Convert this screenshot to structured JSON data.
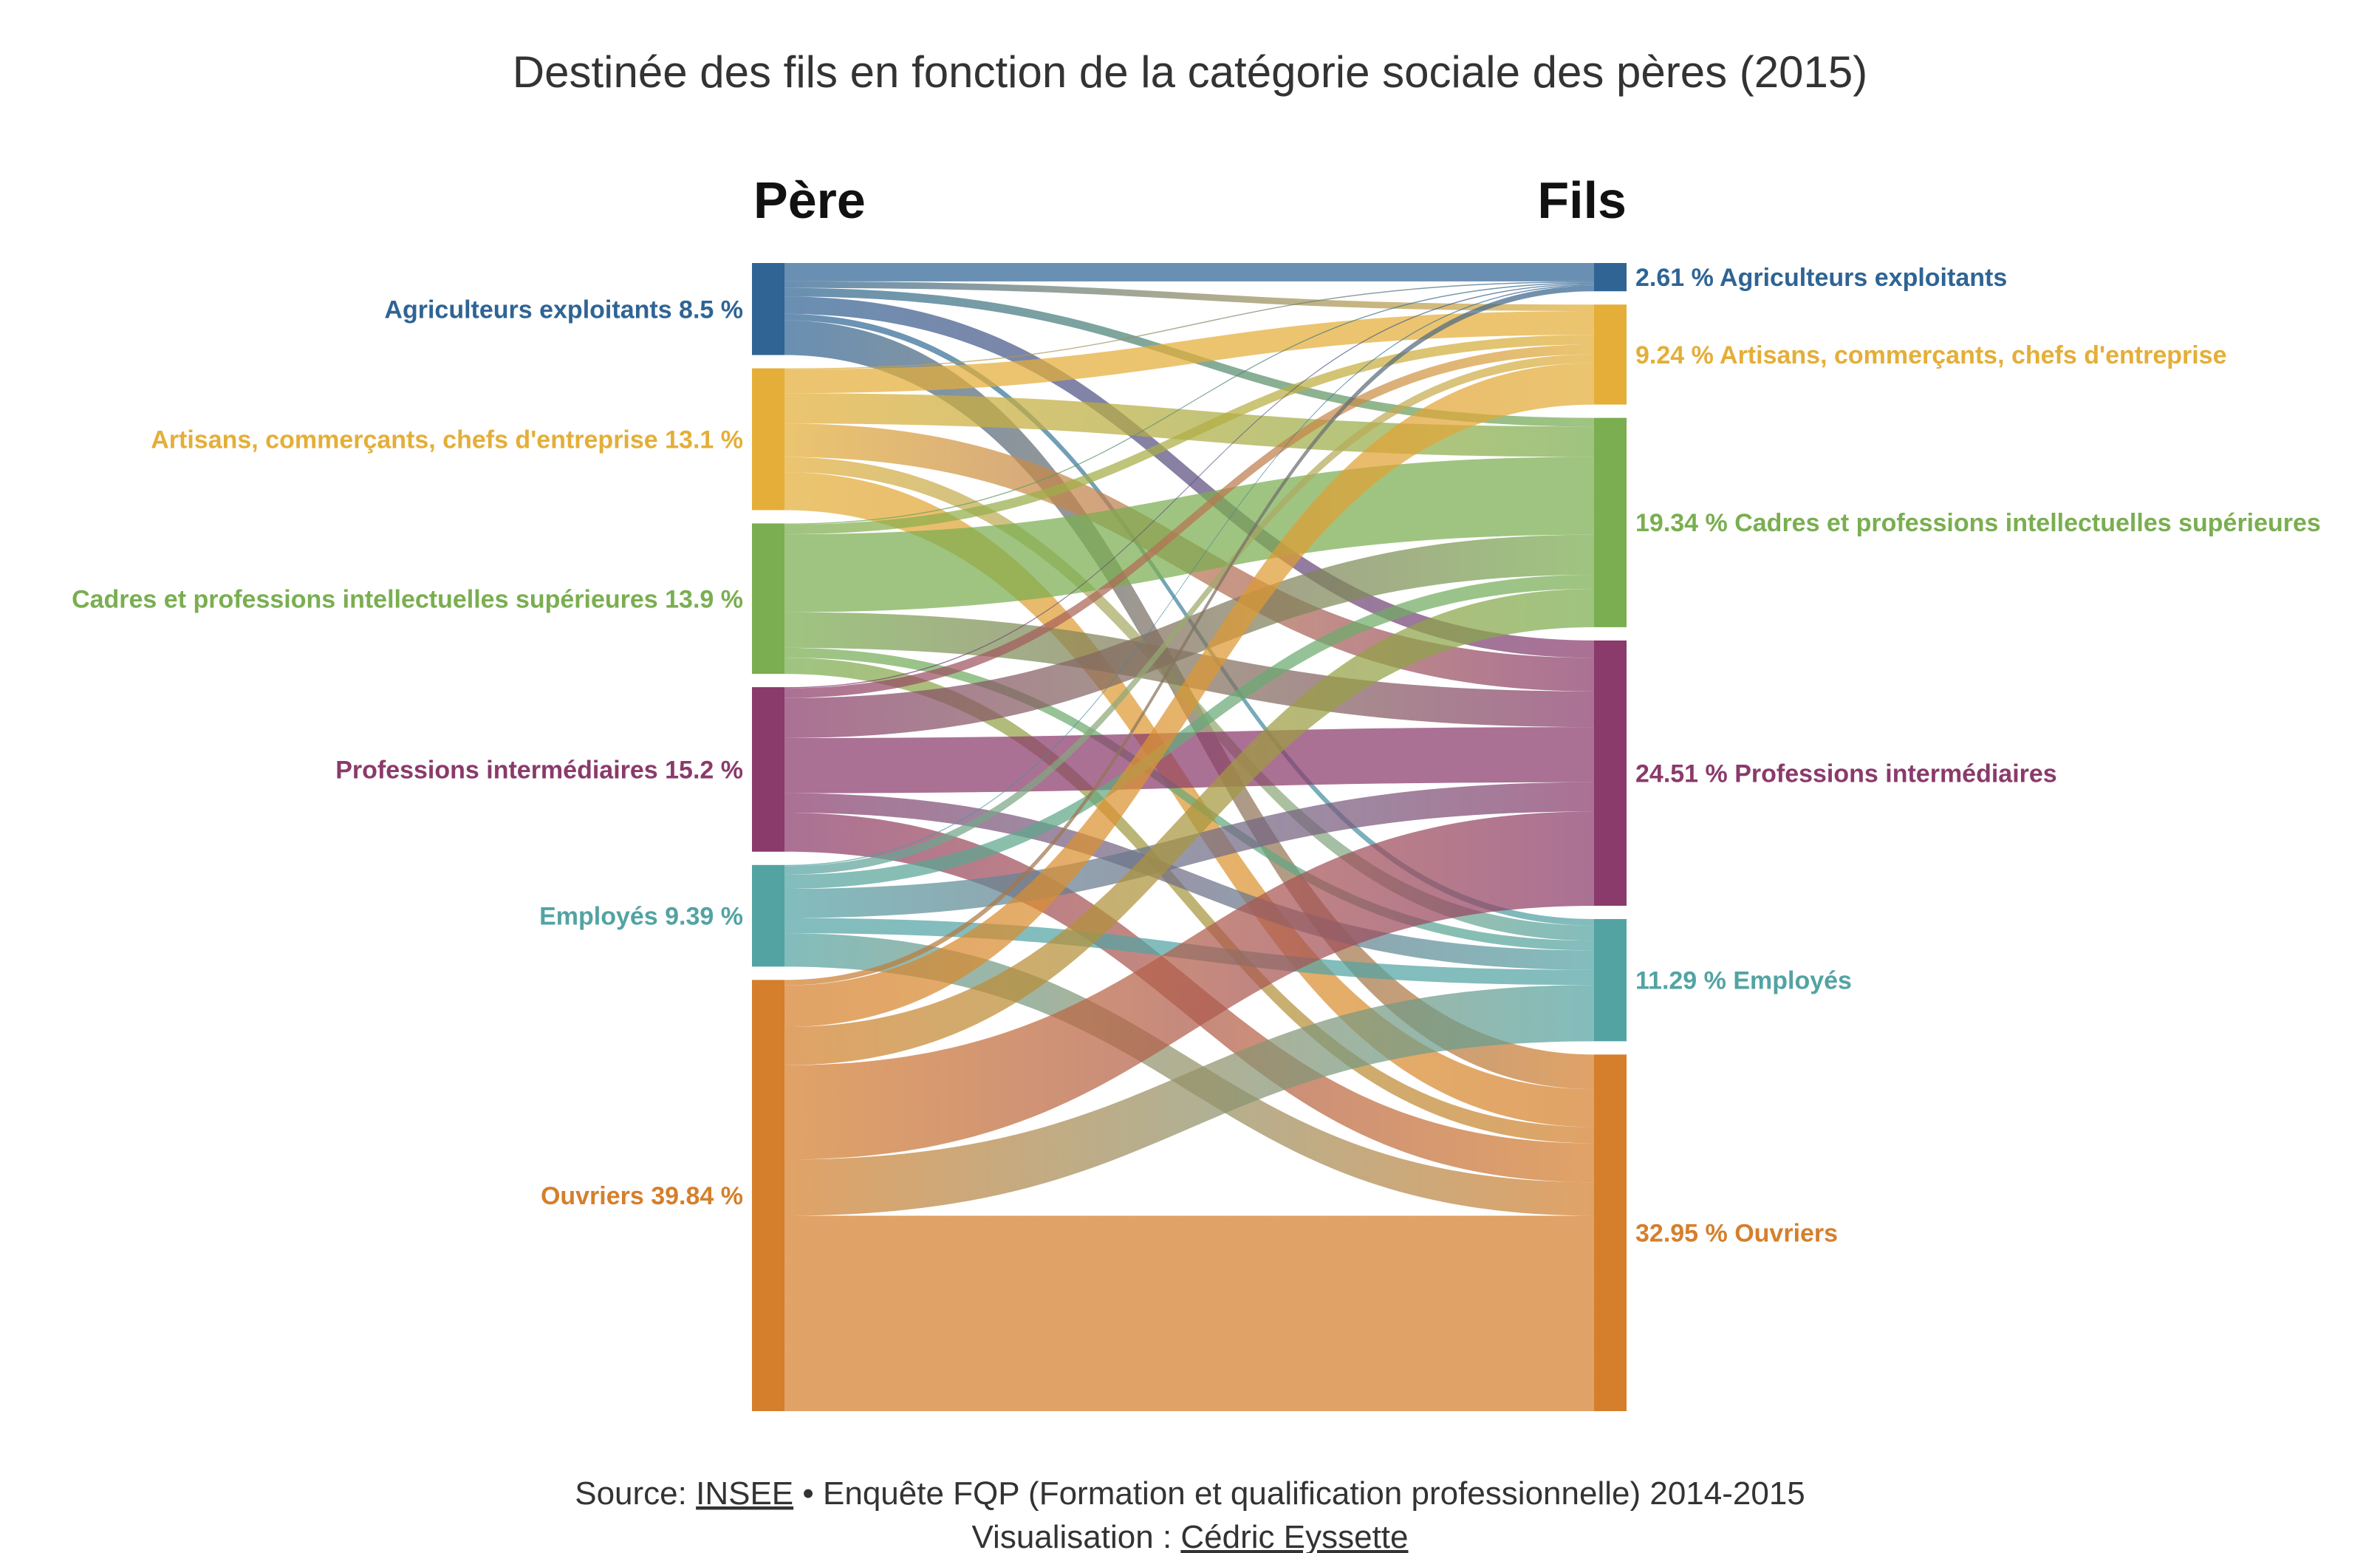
{
  "colors": {
    "agri": "#2f6494",
    "artisans": "#e4ae38",
    "cadres": "#7aae50",
    "intermediaires": "#8a3a6b",
    "employes": "#53a3a3",
    "ouvriers": "#d57f2c"
  },
  "chart_data": {
    "type": "sankey",
    "title": "Destinée des fils en fonction de la catégorie sociale des pères (2015)",
    "source_header": "Père",
    "target_header": "Fils",
    "sources": [
      {
        "key": "agri",
        "name": "Agriculteurs exploitants",
        "value": 8.5,
        "label": "Agriculteurs exploitants 8.5 %"
      },
      {
        "key": "artisans",
        "name": "Artisans, commerçants, chefs d'entreprise",
        "value": 13.1,
        "label": "Artisans, commerçants, chefs d'entreprise 13.1 %"
      },
      {
        "key": "cadres",
        "name": "Cadres et professions intellectuelles supérieures",
        "value": 13.9,
        "label": "Cadres et professions intellectuelles supérieures 13.9 %"
      },
      {
        "key": "intermediaires",
        "name": "Professions intermédiaires",
        "value": 15.2,
        "label": "Professions intermédiaires 15.2 %"
      },
      {
        "key": "employes",
        "name": "Employés",
        "value": 9.39,
        "label": "Employés 9.39 %"
      },
      {
        "key": "ouvriers",
        "name": "Ouvriers",
        "value": 39.84,
        "label": "Ouvriers 39.84 %"
      }
    ],
    "targets": [
      {
        "key": "agri",
        "name": "Agriculteurs exploitants",
        "value": 2.61,
        "label": "2.61 % Agriculteurs exploitants"
      },
      {
        "key": "artisans",
        "name": "Artisans, commerçants, chefs d'entreprise",
        "value": 9.24,
        "label": "9.24 % Artisans, commerçants, chefs d'entreprise"
      },
      {
        "key": "cadres",
        "name": "Cadres et professions intellectuelles supérieures",
        "value": 19.34,
        "label": "19.34 % Cadres et professions intellectuelles supérieures"
      },
      {
        "key": "intermediaires",
        "name": "Professions intermédiaires",
        "value": 24.51,
        "label": "24.51 % Professions intermédiaires"
      },
      {
        "key": "employes",
        "name": "Employés",
        "value": 11.29,
        "label": "11.29 % Employés"
      },
      {
        "key": "ouvriers",
        "name": "Ouvriers",
        "value": 32.95,
        "label": "32.95 % Ouvriers"
      }
    ],
    "flows": [
      {
        "from": "agri",
        "to": "agri",
        "value": 1.7
      },
      {
        "from": "agri",
        "to": "artisans",
        "value": 0.6
      },
      {
        "from": "agri",
        "to": "cadres",
        "value": 0.8
      },
      {
        "from": "agri",
        "to": "intermediaires",
        "value": 1.6
      },
      {
        "from": "agri",
        "to": "employes",
        "value": 0.6
      },
      {
        "from": "agri",
        "to": "ouvriers",
        "value": 3.2
      },
      {
        "from": "artisans",
        "to": "agri",
        "value": 0.1
      },
      {
        "from": "artisans",
        "to": "artisans",
        "value": 2.2
      },
      {
        "from": "artisans",
        "to": "cadres",
        "value": 2.8
      },
      {
        "from": "artisans",
        "to": "intermediaires",
        "value": 3.1
      },
      {
        "from": "artisans",
        "to": "employes",
        "value": 1.4
      },
      {
        "from": "artisans",
        "to": "ouvriers",
        "value": 3.5
      },
      {
        "from": "cadres",
        "to": "agri",
        "value": 0.1
      },
      {
        "from": "cadres",
        "to": "artisans",
        "value": 0.9
      },
      {
        "from": "cadres",
        "to": "cadres",
        "value": 7.2
      },
      {
        "from": "cadres",
        "to": "intermediaires",
        "value": 3.3
      },
      {
        "from": "cadres",
        "to": "employes",
        "value": 0.9
      },
      {
        "from": "cadres",
        "to": "ouvriers",
        "value": 1.5
      },
      {
        "from": "intermediaires",
        "to": "agri",
        "value": 0.1
      },
      {
        "from": "intermediaires",
        "to": "artisans",
        "value": 0.9
      },
      {
        "from": "intermediaires",
        "to": "cadres",
        "value": 3.7
      },
      {
        "from": "intermediaires",
        "to": "intermediaires",
        "value": 5.1
      },
      {
        "from": "intermediaires",
        "to": "employes",
        "value": 1.8
      },
      {
        "from": "intermediaires",
        "to": "ouvriers",
        "value": 3.6
      },
      {
        "from": "employes",
        "to": "agri",
        "value": 0.1
      },
      {
        "from": "employes",
        "to": "artisans",
        "value": 0.8
      },
      {
        "from": "employes",
        "to": "cadres",
        "value": 1.3
      },
      {
        "from": "employes",
        "to": "intermediaires",
        "value": 2.7
      },
      {
        "from": "employes",
        "to": "employes",
        "value": 1.4
      },
      {
        "from": "employes",
        "to": "ouvriers",
        "value": 3.09
      },
      {
        "from": "ouvriers",
        "to": "agri",
        "value": 0.51
      },
      {
        "from": "ouvriers",
        "to": "artisans",
        "value": 3.84
      },
      {
        "from": "ouvriers",
        "to": "cadres",
        "value": 3.54
      },
      {
        "from": "ouvriers",
        "to": "intermediaires",
        "value": 8.71
      },
      {
        "from": "ouvriers",
        "to": "employes",
        "value": 5.19
      },
      {
        "from": "ouvriers",
        "to": "ouvriers",
        "value": 18.05
      }
    ]
  },
  "footer": {
    "source_prefix": "Source: ",
    "source_link": "INSEE",
    "source_rest": " • Enquête FQP (Formation et qualification professionnelle) 2014-2015",
    "visu_prefix": "Visualisation : ",
    "visu_link": "Cédric Eyssette"
  }
}
